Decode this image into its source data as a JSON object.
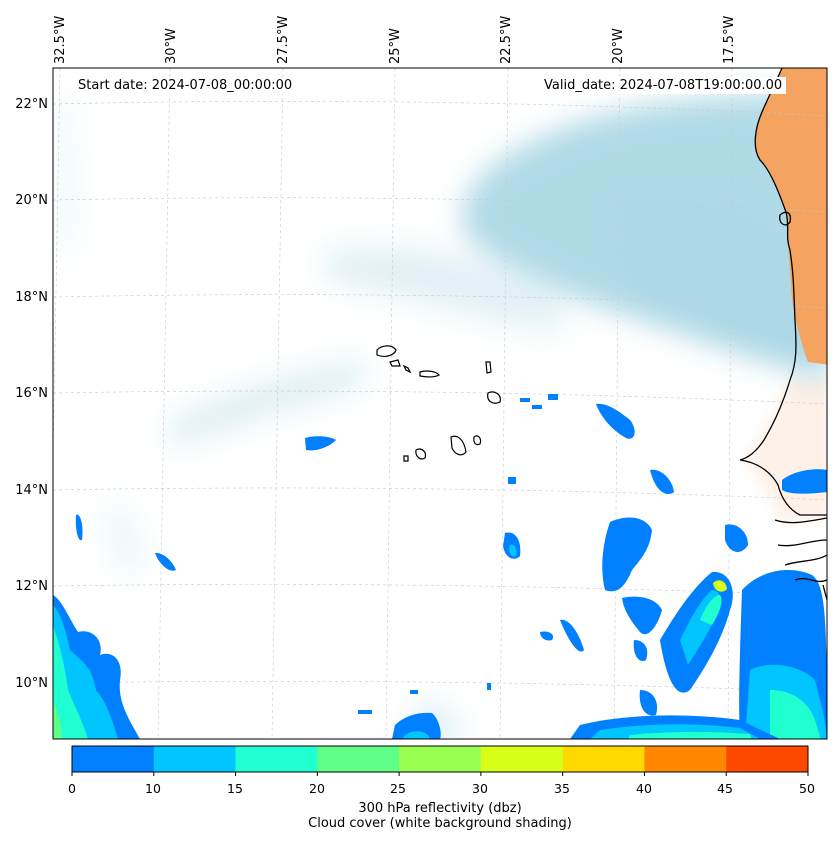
{
  "map": {
    "start_date_text": "Start date: 2024-07-08_00:00:00",
    "valid_date_text": "Valid_date: 2024-07-08T19:00:00.00",
    "lon_labels": [
      "32.5°W",
      "30°W",
      "27.5°W",
      "25°W",
      "22.5°W",
      "20°W",
      "17.5°W"
    ],
    "lat_labels": [
      "22°N",
      "20°N",
      "18°N",
      "16°N",
      "14°N",
      "12°N",
      "10°N"
    ],
    "colors": {
      "cloud": "#add8e6",
      "land": "#f4a460",
      "coast": "#000000"
    }
  },
  "colorbar": {
    "ticks": [
      "0",
      "10",
      "15",
      "20",
      "25",
      "30",
      "35",
      "40",
      "45",
      "50"
    ],
    "colors": [
      "#0080ff",
      "#00c5ff",
      "#20ffd0",
      "#60ff88",
      "#98ff50",
      "#d8ff18",
      "#ffd800",
      "#ff8800",
      "#ff4800"
    ],
    "label_line1": "300 hPa reflectivity (dbz)",
    "label_line2": "Cloud cover (white background shading)"
  }
}
